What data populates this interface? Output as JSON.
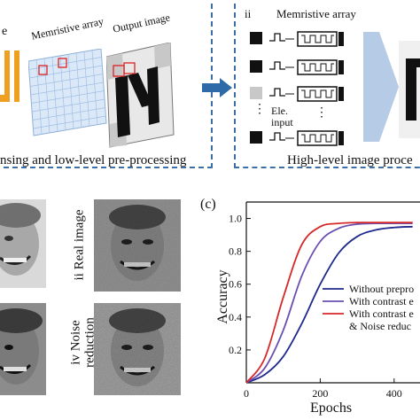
{
  "top_left": {
    "title_fragment": "e",
    "array_label": "Memristive array",
    "output_label": "Output image",
    "caption": "nsing and low-level pre-processing"
  },
  "top_right": {
    "panel_index": "ii",
    "array_label": "Memristive array",
    "input_label_line1": "Ele.",
    "input_label_line2": "input",
    "caption": "High-level image proce"
  },
  "faces": {
    "label_ii": "ii Real image",
    "label_iv_line1": "iv Noise",
    "label_iv_line2": "reduction"
  },
  "colors": {
    "frame": "#3b6fa6",
    "arrow": "#2f6aa8",
    "accent_orange": "#f0a020",
    "grid_blue": "#cfe0f5",
    "series_blue": "#1f2a8c",
    "series_purple": "#6a4fb0",
    "series_red": "#d62828"
  },
  "chart_data": {
    "panel_label": "(c)",
    "type": "line",
    "xlabel": "Epochs",
    "ylabel": "Accuracy",
    "xlim": [
      0,
      470
    ],
    "ylim": [
      0,
      1.1
    ],
    "x_ticks": [
      "0",
      "200",
      "400"
    ],
    "y_ticks": [
      "0.2",
      "0.4",
      "0.6",
      "0.8",
      "1.0"
    ],
    "series": [
      {
        "name": "Without prepro",
        "color": "#1f2a8c",
        "x": [
          0,
          50,
          100,
          150,
          200,
          250,
          300,
          350,
          400,
          450
        ],
        "y": [
          0.0,
          0.05,
          0.16,
          0.36,
          0.6,
          0.79,
          0.89,
          0.93,
          0.945,
          0.95
        ]
      },
      {
        "name": "With contrast e",
        "color": "#6a4fb0",
        "x": [
          0,
          50,
          100,
          150,
          200,
          250,
          300,
          350,
          400,
          450
        ],
        "y": [
          0.0,
          0.09,
          0.32,
          0.65,
          0.86,
          0.94,
          0.965,
          0.97,
          0.97,
          0.97
        ]
      },
      {
        "name": "With contrast e & Noise reduc",
        "color": "#d62828",
        "x": [
          0,
          50,
          100,
          150,
          200,
          250,
          300,
          350,
          400,
          450
        ],
        "y": [
          0.0,
          0.15,
          0.52,
          0.84,
          0.95,
          0.97,
          0.975,
          0.975,
          0.975,
          0.975
        ]
      }
    ],
    "legend": {
      "placement": "bottom-right",
      "entries": [
        "Without prepro",
        "With contrast e",
        "With contrast e",
        "& Noise reduc"
      ]
    }
  }
}
